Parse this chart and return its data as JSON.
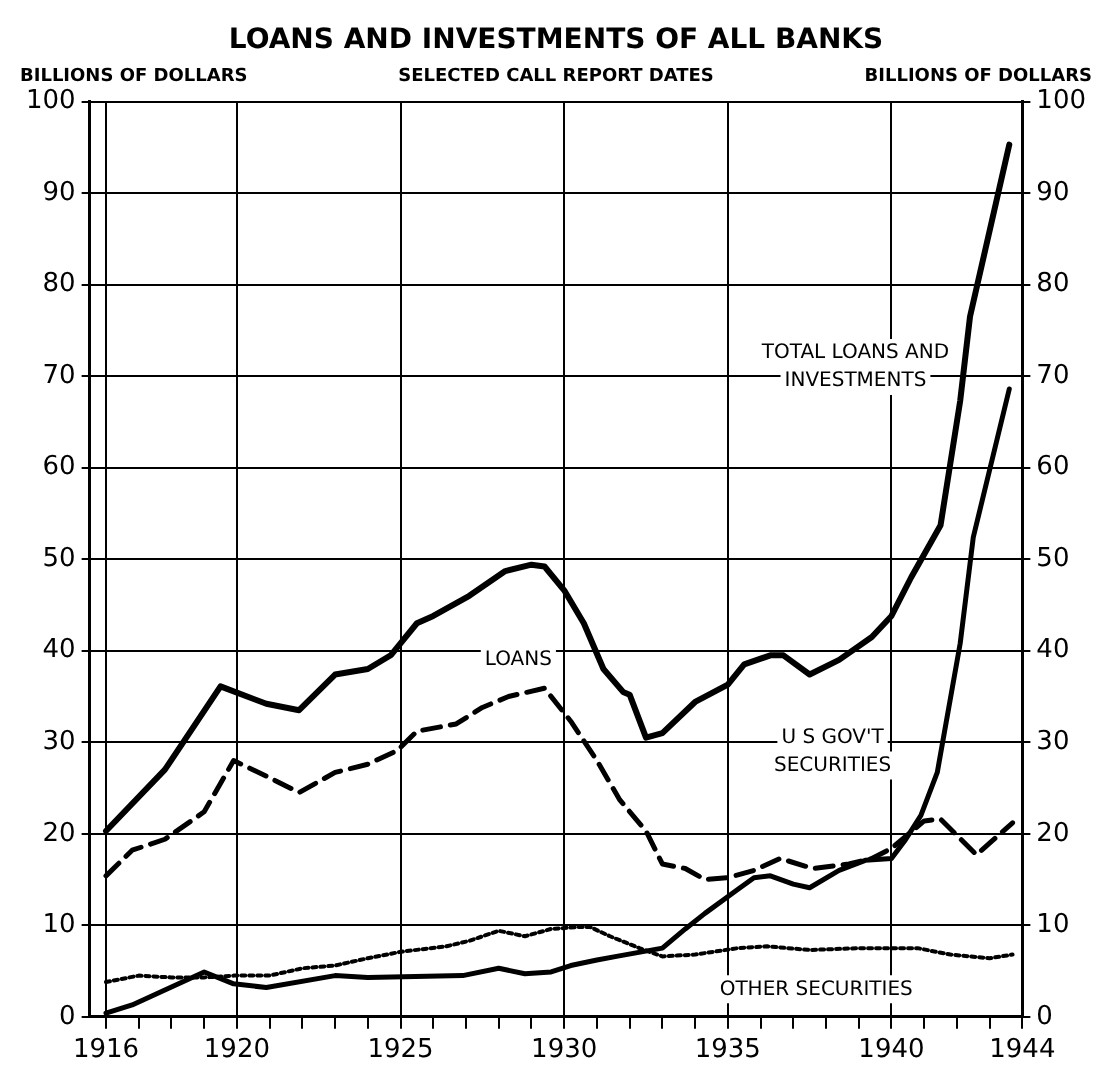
{
  "chart_data": {
    "type": "line",
    "title": "LOANS AND INVESTMENTS OF ALL BANKS",
    "subtitle": "SELECTED CALL REPORT DATES",
    "ylabel": "BILLIONS OF DOLLARS",
    "y2label": "BILLIONS OF DOLLARS",
    "xlim": [
      1915.5,
      1944
    ],
    "xticks": [
      1916,
      {
        "value": 1917,
        "label": null
      },
      {
        "value": 1918,
        "label": null
      },
      {
        "value": 1919,
        "label": null
      },
      1920,
      {
        "value": 1921,
        "label": null
      },
      {
        "value": 1922,
        "label": null
      },
      {
        "value": 1923,
        "label": null
      },
      {
        "value": 1924,
        "label": null
      },
      1925,
      {
        "value": 1926,
        "label": null
      },
      {
        "value": 1927,
        "label": null
      },
      {
        "value": 1928,
        "label": null
      },
      {
        "value": 1929,
        "label": null
      },
      1930,
      {
        "value": 1931,
        "label": null
      },
      {
        "value": 1932,
        "label": null
      },
      {
        "value": 1933,
        "label": null
      },
      {
        "value": 1934,
        "label": null
      },
      1935,
      {
        "value": 1936,
        "label": null
      },
      {
        "value": 1937,
        "label": null
      },
      {
        "value": 1938,
        "label": null
      },
      {
        "value": 1939,
        "label": null
      },
      1940,
      {
        "value": 1941,
        "label": null
      },
      {
        "value": 1942,
        "label": null
      },
      {
        "value": 1943,
        "label": null
      },
      1944
    ],
    "ylim": [
      0,
      100
    ],
    "yticks": [
      0,
      10,
      20,
      30,
      40,
      50,
      60,
      70,
      80,
      90,
      100
    ],
    "y2lim": [
      0,
      100
    ],
    "y2ticks": [
      0,
      10,
      20,
      30,
      40,
      50,
      60,
      70,
      80,
      90,
      100
    ],
    "grid": true,
    "legend": false,
    "marker": "none",
    "series": [
      {
        "name": "TOTAL LOANS AND INVESTMENTS",
        "color": "#000000",
        "line_style": "solid",
        "x": [
          1916,
          1917.8,
          1919.5,
          1920.9,
          1921.9,
          1923,
          1924,
          1924.7,
          1925.5,
          1926,
          1927.1,
          1928.2,
          1929,
          1929.4,
          1930,
          1930.6,
          1931.2,
          1931.8,
          1932,
          1932.5,
          1933,
          1934,
          1935,
          1935.5,
          1936.3,
          1936.7,
          1937.5,
          1938.4,
          1939.4,
          1940,
          1940.6,
          1941.5,
          1942.1,
          1942.4,
          1943.6
        ],
        "values": [
          20.3,
          27,
          36.1,
          34.2,
          33.5,
          37.4,
          38,
          39.5,
          43,
          43.8,
          46,
          48.7,
          49.4,
          49.2,
          46.6,
          43,
          38,
          35.5,
          35.2,
          30.5,
          31,
          34.4,
          36.3,
          38.5,
          39.5,
          39.5,
          37.4,
          39,
          41.5,
          43.8,
          48,
          53.7,
          67.3,
          76.5,
          95.3
        ]
      },
      {
        "name": "LOANS",
        "color": "#000000",
        "line_style": "dashed",
        "x": [
          1916,
          1916.8,
          1917.8,
          1919,
          1919.9,
          1920.9,
          1921.9,
          1923,
          1924,
          1924.9,
          1925.5,
          1926.7,
          1927.5,
          1928.3,
          1929.4,
          1930.2,
          1931,
          1931.7,
          1932.5,
          1933,
          1933.7,
          1934.3,
          1935,
          1935.8,
          1936.6,
          1937.6,
          1938.7,
          1939.4,
          1940,
          1941,
          1941.5,
          1942.6,
          1943.7
        ],
        "values": [
          15.4,
          18.2,
          19.4,
          22.4,
          28,
          26.3,
          24.5,
          26.7,
          27.6,
          29.1,
          31.2,
          32,
          33.8,
          35,
          35.9,
          32.3,
          28,
          23.7,
          20.3,
          16.7,
          16.2,
          15,
          15.2,
          16,
          17.3,
          16.2,
          16.7,
          17.3,
          18.4,
          21.4,
          21.6,
          17.7,
          21.2
        ]
      },
      {
        "name": "U S GOV'T SECURITIES",
        "color": "#000000",
        "line_style": "solid",
        "x": [
          1916,
          1916.8,
          1919,
          1919.9,
          1920.9,
          1923,
          1924,
          1926.9,
          1928,
          1928.8,
          1929.6,
          1930.2,
          1931,
          1931.6,
          1933,
          1933.7,
          1934.3,
          1935.3,
          1935.8,
          1936.3,
          1937,
          1937.5,
          1938.4,
          1939.2,
          1940,
          1940.4,
          1940.9,
          1941.4,
          1942.1,
          1942.5,
          1943.6
        ],
        "values": [
          0.4,
          1.3,
          4.9,
          3.6,
          3.2,
          4.5,
          4.3,
          4.5,
          5.3,
          4.7,
          4.9,
          5.6,
          6.2,
          6.6,
          7.5,
          9.6,
          11.3,
          13.9,
          15.2,
          15.4,
          14.5,
          14.1,
          16,
          17.1,
          17.3,
          19.2,
          22,
          26.7,
          40.8,
          52.4,
          68.6
        ]
      },
      {
        "name": "OTHER SECURITIES",
        "color": "#000000",
        "line_style": "dotted",
        "x": [
          1916,
          1917,
          1918,
          1919,
          1919.9,
          1921,
          1922,
          1923,
          1924,
          1925,
          1926.4,
          1927.1,
          1928,
          1928.8,
          1929.6,
          1930.4,
          1930.8,
          1931.4,
          1932.3,
          1933,
          1934,
          1935.3,
          1936.2,
          1937.5,
          1939,
          1940.8,
          1941.8,
          1943,
          1943.7
        ],
        "values": [
          3.8,
          4.5,
          4.3,
          4.3,
          4.5,
          4.5,
          5.3,
          5.6,
          6.4,
          7.1,
          7.7,
          8.3,
          9.4,
          8.8,
          9.6,
          9.8,
          9.8,
          8.8,
          7.5,
          6.6,
          6.8,
          7.5,
          7.7,
          7.3,
          7.5,
          7.5,
          6.8,
          6.4,
          6.8
        ]
      }
    ]
  }
}
